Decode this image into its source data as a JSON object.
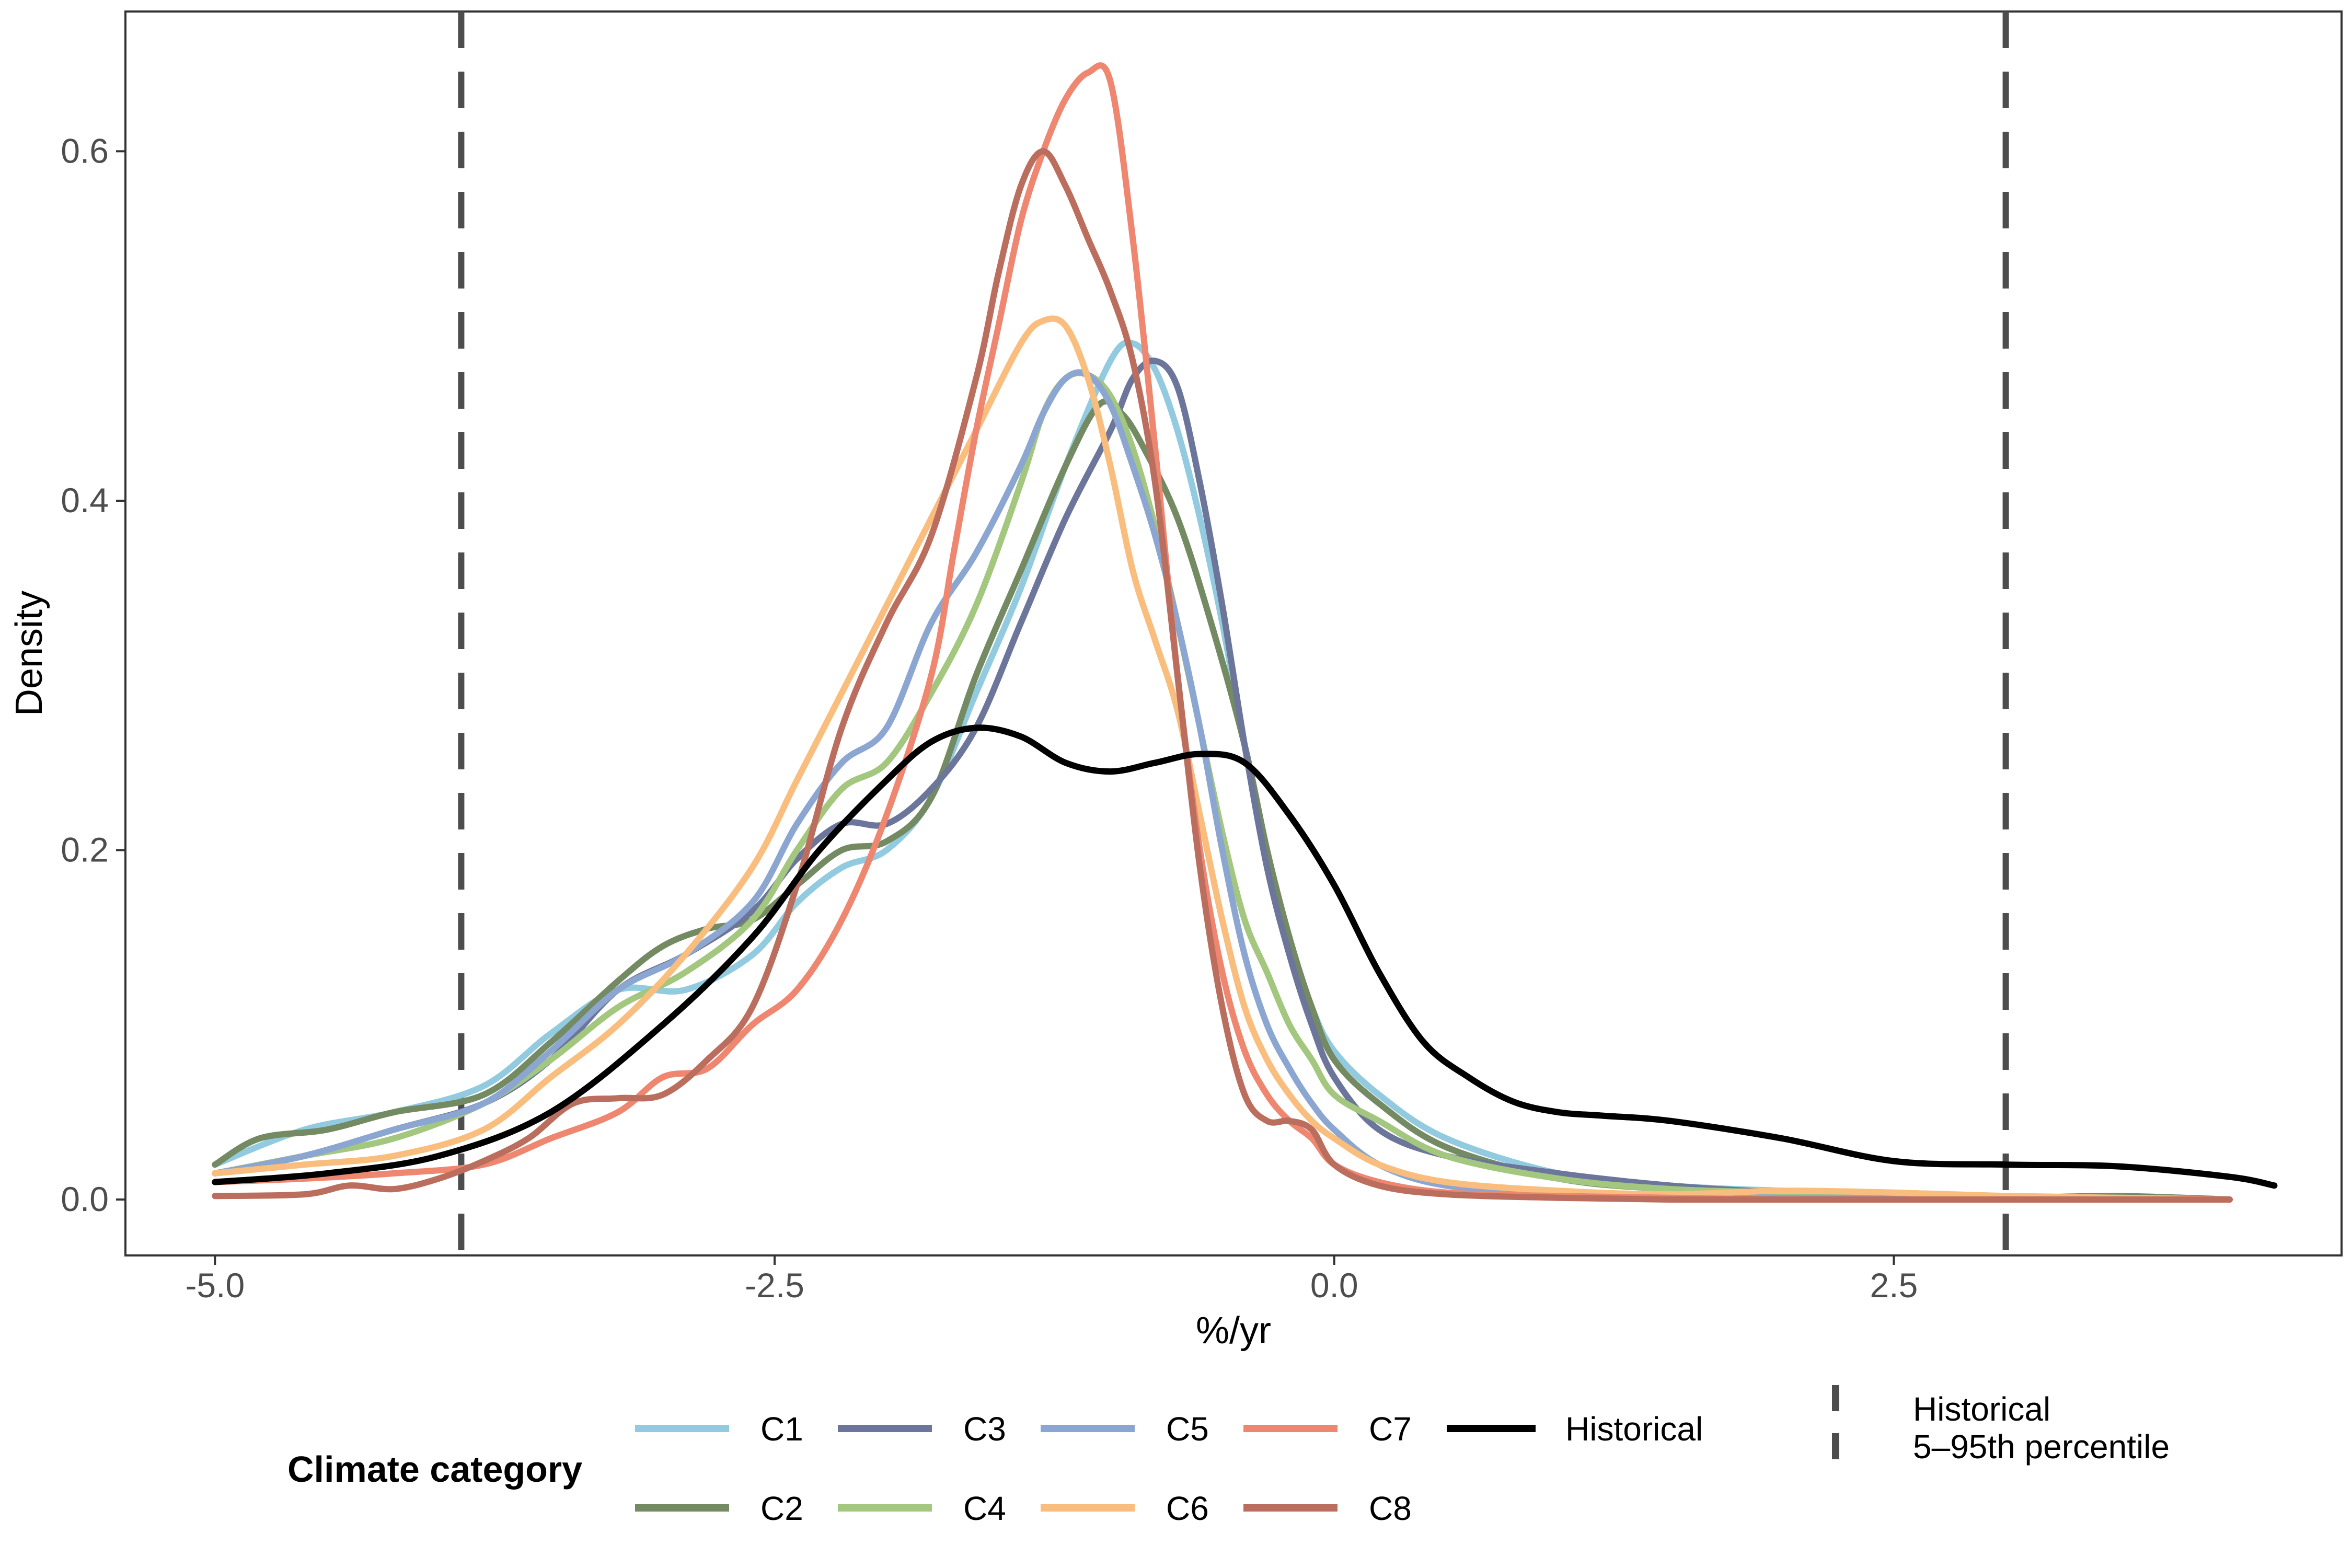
{
  "chart_data": {
    "type": "line",
    "subtype": "density",
    "xlabel": "%/yr",
    "ylabel": "Density",
    "xlim": [
      -5.4,
      4.5
    ],
    "ylim": [
      -0.032,
      0.68
    ],
    "xticks": [
      -5.0,
      -2.5,
      0.0,
      2.5
    ],
    "xtick_labels": [
      "-5.0",
      "-2.5",
      "0.0",
      "2.5"
    ],
    "yticks": [
      0.0,
      0.2,
      0.4,
      0.6
    ],
    "ytick_labels": [
      "0.0",
      "0.2",
      "0.4",
      "0.6"
    ],
    "grid": false,
    "legend_position": "bottom",
    "legend_title": "Climate category",
    "vlines": {
      "label": "Historical\n5–95th percentile",
      "label_lines": [
        "Historical",
        "5–95th percentile"
      ],
      "x": [
        -3.9,
        3.0
      ],
      "color": "#4d4d4d",
      "style": "dashed"
    },
    "series": [
      {
        "name": "C1",
        "color": "#92CBDF",
        "x": [
          -5.0,
          -4.6,
          -4.2,
          -3.8,
          -3.5,
          -3.2,
          -2.9,
          -2.6,
          -2.4,
          -2.2,
          -2.0,
          -1.8,
          -1.6,
          -1.4,
          -1.2,
          -1.0,
          -0.9,
          -0.8,
          -0.7,
          -0.6,
          -0.5,
          -0.4,
          -0.3,
          -0.2,
          -0.1,
          0.0,
          0.2,
          0.5,
          1.0,
          1.5,
          2.0,
          2.5,
          3.0,
          3.5,
          4.0
        ],
        "y": [
          0.02,
          0.04,
          0.05,
          0.065,
          0.095,
          0.12,
          0.12,
          0.14,
          0.17,
          0.19,
          0.2,
          0.23,
          0.29,
          0.35,
          0.42,
          0.48,
          0.49,
          0.475,
          0.44,
          0.39,
          0.33,
          0.26,
          0.2,
          0.15,
          0.11,
          0.085,
          0.06,
          0.035,
          0.015,
          0.008,
          0.005,
          0.003,
          0.002,
          0.001,
          0.0
        ]
      },
      {
        "name": "C2",
        "color": "#748A63",
        "x": [
          -5.0,
          -4.8,
          -4.5,
          -4.2,
          -3.8,
          -3.5,
          -3.2,
          -3.0,
          -2.8,
          -2.6,
          -2.4,
          -2.2,
          -2.0,
          -1.8,
          -1.6,
          -1.4,
          -1.2,
          -1.05,
          -0.95,
          -0.85,
          -0.7,
          -0.55,
          -0.4,
          -0.3,
          -0.2,
          -0.1,
          0.0,
          0.2,
          0.5,
          1.0,
          1.5,
          2.0,
          2.5,
          3.0,
          3.5,
          4.0
        ],
        "y": [
          0.02,
          0.035,
          0.04,
          0.05,
          0.06,
          0.09,
          0.125,
          0.145,
          0.155,
          0.16,
          0.18,
          0.2,
          0.205,
          0.23,
          0.3,
          0.36,
          0.42,
          0.455,
          0.45,
          0.43,
          0.39,
          0.33,
          0.26,
          0.2,
          0.15,
          0.11,
          0.08,
          0.055,
          0.03,
          0.012,
          0.006,
          0.004,
          0.002,
          0.001,
          0.002,
          0.0
        ]
      },
      {
        "name": "C3",
        "color": "#6C759A",
        "x": [
          -5.0,
          -4.6,
          -4.2,
          -3.8,
          -3.5,
          -3.2,
          -2.9,
          -2.6,
          -2.4,
          -2.2,
          -2.0,
          -1.8,
          -1.6,
          -1.4,
          -1.2,
          -1.0,
          -0.9,
          -0.8,
          -0.7,
          -0.6,
          -0.5,
          -0.4,
          -0.3,
          -0.2,
          -0.1,
          0.0,
          0.2,
          0.5,
          1.0,
          1.5,
          2.0,
          2.5,
          3.0,
          3.5,
          4.0
        ],
        "y": [
          0.015,
          0.025,
          0.04,
          0.055,
          0.08,
          0.12,
          0.14,
          0.165,
          0.195,
          0.215,
          0.215,
          0.235,
          0.27,
          0.33,
          0.39,
          0.44,
          0.47,
          0.48,
          0.465,
          0.41,
          0.34,
          0.26,
          0.19,
          0.14,
          0.1,
          0.07,
          0.04,
          0.025,
          0.015,
          0.008,
          0.004,
          0.002,
          0.001,
          0.001,
          0.0
        ]
      },
      {
        "name": "C4",
        "color": "#A3C77E",
        "x": [
          -5.0,
          -4.6,
          -4.2,
          -3.8,
          -3.5,
          -3.2,
          -2.9,
          -2.6,
          -2.4,
          -2.2,
          -2.0,
          -1.8,
          -1.6,
          -1.4,
          -1.3,
          -1.2,
          -1.1,
          -1.0,
          -0.9,
          -0.8,
          -0.7,
          -0.6,
          -0.5,
          -0.4,
          -0.3,
          -0.2,
          -0.1,
          0.0,
          0.2,
          0.5,
          1.0,
          1.5,
          2.0,
          2.5,
          3.0,
          3.5,
          4.0
        ],
        "y": [
          0.015,
          0.025,
          0.035,
          0.055,
          0.08,
          0.11,
          0.13,
          0.16,
          0.2,
          0.235,
          0.25,
          0.29,
          0.34,
          0.41,
          0.45,
          0.47,
          0.472,
          0.46,
          0.43,
          0.385,
          0.33,
          0.27,
          0.21,
          0.16,
          0.13,
          0.1,
          0.08,
          0.06,
          0.045,
          0.025,
          0.012,
          0.006,
          0.004,
          0.002,
          0.001,
          0.001,
          0.0
        ]
      },
      {
        "name": "C5",
        "color": "#8BA6D1",
        "x": [
          -5.0,
          -4.6,
          -4.2,
          -3.8,
          -3.5,
          -3.2,
          -2.9,
          -2.6,
          -2.4,
          -2.2,
          -2.0,
          -1.8,
          -1.6,
          -1.4,
          -1.3,
          -1.2,
          -1.1,
          -1.0,
          -0.9,
          -0.8,
          -0.7,
          -0.6,
          -0.5,
          -0.4,
          -0.3,
          -0.2,
          -0.1,
          0.0,
          0.2,
          0.5,
          1.0,
          1.5,
          2.0,
          2.5,
          3.0,
          3.5,
          4.0
        ],
        "y": [
          0.015,
          0.025,
          0.04,
          0.055,
          0.085,
          0.12,
          0.14,
          0.17,
          0.215,
          0.25,
          0.27,
          0.33,
          0.37,
          0.42,
          0.45,
          0.47,
          0.472,
          0.455,
          0.42,
          0.38,
          0.33,
          0.27,
          0.2,
          0.14,
          0.1,
          0.075,
          0.055,
          0.04,
          0.02,
          0.008,
          0.004,
          0.002,
          0.001,
          0.001,
          0.0,
          0.0,
          0.0
        ]
      },
      {
        "name": "C6",
        "color": "#F9BE7E",
        "x": [
          -5.0,
          -4.6,
          -4.2,
          -3.8,
          -3.5,
          -3.2,
          -2.9,
          -2.6,
          -2.4,
          -2.2,
          -2.0,
          -1.8,
          -1.6,
          -1.4,
          -1.3,
          -1.2,
          -1.1,
          -1.0,
          -0.9,
          -0.8,
          -0.7,
          -0.6,
          -0.5,
          -0.4,
          -0.3,
          -0.2,
          -0.1,
          0.0,
          0.2,
          0.5,
          1.0,
          1.5,
          2.0,
          2.5,
          3.0,
          3.5,
          4.0
        ],
        "y": [
          0.015,
          0.02,
          0.025,
          0.04,
          0.07,
          0.1,
          0.14,
          0.19,
          0.24,
          0.29,
          0.34,
          0.39,
          0.44,
          0.49,
          0.503,
          0.5,
          0.47,
          0.42,
          0.36,
          0.32,
          0.28,
          0.22,
          0.16,
          0.11,
          0.08,
          0.06,
          0.045,
          0.035,
          0.02,
          0.01,
          0.005,
          0.003,
          0.005,
          0.004,
          0.002,
          0.001,
          0.0
        ]
      },
      {
        "name": "C7",
        "color": "#EE8670",
        "x": [
          -5.0,
          -4.6,
          -4.2,
          -3.8,
          -3.5,
          -3.2,
          -3.0,
          -2.8,
          -2.6,
          -2.4,
          -2.2,
          -2.0,
          -1.8,
          -1.7,
          -1.6,
          -1.5,
          -1.4,
          -1.3,
          -1.2,
          -1.1,
          -1.0,
          -0.9,
          -0.8,
          -0.7,
          -0.6,
          -0.5,
          -0.4,
          -0.3,
          -0.2,
          -0.1,
          0.0,
          0.2,
          0.5,
          1.0,
          1.5,
          2.0,
          2.5,
          3.0,
          3.5,
          4.0
        ],
        "y": [
          0.01,
          0.012,
          0.015,
          0.02,
          0.035,
          0.05,
          0.07,
          0.075,
          0.1,
          0.12,
          0.16,
          0.22,
          0.3,
          0.37,
          0.44,
          0.5,
          0.56,
          0.6,
          0.63,
          0.645,
          0.64,
          0.55,
          0.43,
          0.3,
          0.2,
          0.13,
          0.085,
          0.06,
          0.045,
          0.035,
          0.02,
          0.01,
          0.004,
          0.002,
          0.001,
          0.0,
          0.0,
          0.0,
          0.0,
          0.0
        ]
      },
      {
        "name": "C8",
        "color": "#BC6E5E",
        "x": [
          -5.0,
          -4.6,
          -4.4,
          -4.2,
          -4.0,
          -3.8,
          -3.6,
          -3.4,
          -3.2,
          -3.0,
          -2.8,
          -2.6,
          -2.4,
          -2.2,
          -2.0,
          -1.8,
          -1.6,
          -1.5,
          -1.4,
          -1.3,
          -1.2,
          -1.1,
          -1.0,
          -0.9,
          -0.8,
          -0.7,
          -0.6,
          -0.5,
          -0.4,
          -0.3,
          -0.2,
          -0.1,
          0.0,
          0.2,
          0.5,
          1.0,
          1.5,
          2.0,
          2.5,
          3.0,
          3.5,
          4.0
        ],
        "y": [
          0.002,
          0.003,
          0.008,
          0.006,
          0.012,
          0.022,
          0.035,
          0.055,
          0.058,
          0.06,
          0.08,
          0.11,
          0.18,
          0.27,
          0.33,
          0.38,
          0.47,
          0.53,
          0.58,
          0.6,
          0.58,
          0.55,
          0.52,
          0.48,
          0.41,
          0.3,
          0.19,
          0.11,
          0.06,
          0.045,
          0.045,
          0.04,
          0.02,
          0.008,
          0.003,
          0.001,
          0.0,
          0.0,
          0.0,
          0.0,
          0.0,
          0.0
        ]
      },
      {
        "name": "Historical",
        "color": "#000000",
        "x": [
          -5.0,
          -4.5,
          -4.0,
          -3.5,
          -3.0,
          -2.6,
          -2.3,
          -2.0,
          -1.8,
          -1.6,
          -1.4,
          -1.2,
          -1.0,
          -0.8,
          -0.6,
          -0.4,
          -0.2,
          0.0,
          0.2,
          0.4,
          0.6,
          0.8,
          1.0,
          1.2,
          1.5,
          2.0,
          2.5,
          3.0,
          3.5,
          4.0,
          4.2
        ],
        "y": [
          0.01,
          0.015,
          0.025,
          0.05,
          0.1,
          0.15,
          0.2,
          0.24,
          0.262,
          0.27,
          0.265,
          0.25,
          0.245,
          0.25,
          0.255,
          0.25,
          0.22,
          0.18,
          0.13,
          0.09,
          0.07,
          0.056,
          0.05,
          0.048,
          0.045,
          0.035,
          0.022,
          0.02,
          0.019,
          0.013,
          0.008
        ]
      }
    ]
  }
}
